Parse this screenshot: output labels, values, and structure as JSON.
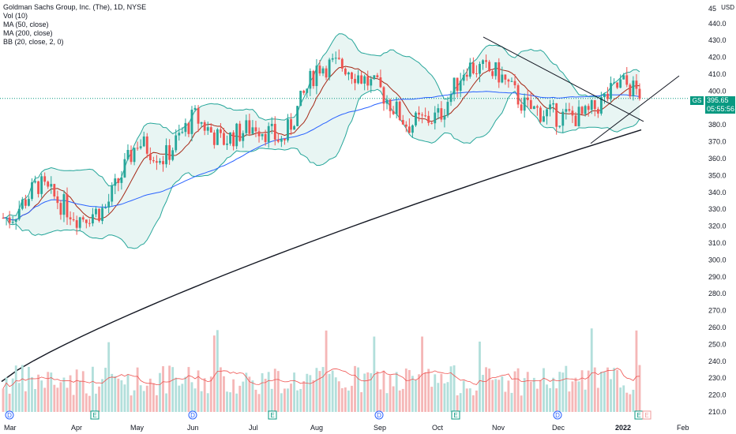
{
  "legend": {
    "title": "Goldman Sachs Group, Inc. (The), 1D, NYSE",
    "vol": "Vol (10)",
    "ma50": "MA (50, close)",
    "ma200": "MA (200, close)",
    "bb": "BB (20, close, 2, 0)"
  },
  "axis": {
    "currency": "USD",
    "symbol": "GS",
    "last_price": "395.65",
    "countdown": "05:55:56"
  },
  "colors": {
    "up": "#26a69a",
    "down": "#ef5350",
    "vol_up": "#b2dfdb",
    "vol_down": "#f5b7b7",
    "bb_line": "#26a69a",
    "bb_fill": "#e8f5f3",
    "ma10": "#a52714",
    "ma50": "#2962ff",
    "ma200": "#131722",
    "price_line": "#089981"
  },
  "chart_data": {
    "type": "candlestick",
    "symbol": "GS",
    "interval": "1D",
    "exchange": "NYSE",
    "y_ticks": [
      210,
      220,
      230,
      240,
      250,
      260,
      270,
      280,
      290,
      300,
      310,
      320,
      330,
      340,
      350,
      360,
      370,
      380,
      390,
      400,
      410,
      420,
      430,
      440
    ],
    "y_top_label": "45",
    "ylim": [
      205,
      452
    ],
    "x_ticks": [
      "Mar",
      "Apr",
      "May",
      "Jun",
      "Jul",
      "Aug",
      "Sep",
      "Oct",
      "Nov",
      "Dec",
      "2022",
      "Feb"
    ],
    "last_price": 395.65,
    "event_markers": [
      {
        "label": "D",
        "month": "Mar"
      },
      {
        "label": "E",
        "month": "Apr"
      },
      {
        "label": "D",
        "month": "Jun"
      },
      {
        "label": "E",
        "month": "Jul"
      },
      {
        "label": "D",
        "month": "Sep"
      },
      {
        "label": "E",
        "month": "Oct"
      },
      {
        "label": "D",
        "month": "Dec"
      },
      {
        "label": "E",
        "month": "Jan"
      }
    ],
    "close_path": [
      {
        "month": "Mar",
        "close": 325
      },
      {
        "month": "Mar",
        "close": 345
      },
      {
        "month": "Apr",
        "close": 325
      },
      {
        "month": "Apr",
        "close": 330
      },
      {
        "month": "May",
        "close": 370
      },
      {
        "month": "May",
        "close": 360
      },
      {
        "month": "Jun",
        "close": 385
      },
      {
        "month": "Jun",
        "close": 370
      },
      {
        "month": "Jul",
        "close": 380
      },
      {
        "month": "Jul",
        "close": 370
      },
      {
        "month": "Aug",
        "close": 415
      },
      {
        "month": "Aug",
        "close": 415
      },
      {
        "month": "Sep",
        "close": 400
      },
      {
        "month": "Sep",
        "close": 380
      },
      {
        "month": "Oct",
        "close": 385
      },
      {
        "month": "Oct",
        "close": 415
      },
      {
        "month": "Nov",
        "close": 410
      },
      {
        "month": "Nov",
        "close": 390
      },
      {
        "month": "Dec",
        "close": 385
      },
      {
        "month": "Dec",
        "close": 385
      },
      {
        "month": "2022",
        "close": 405
      },
      {
        "month": "2022",
        "close": 395.65
      }
    ]
  }
}
